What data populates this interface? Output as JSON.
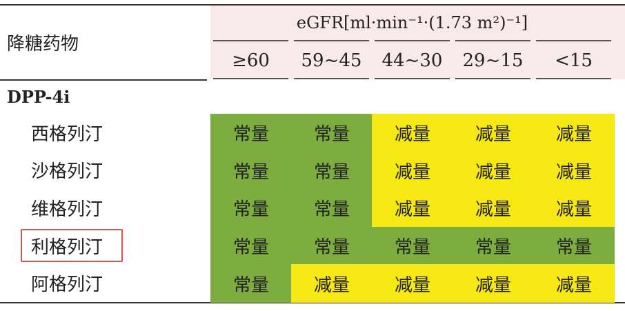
{
  "header": {
    "drug_label": "降糖药物",
    "egfr_label": "eGFR[ml·min⁻¹·(1.73 m²)⁻¹]",
    "columns": [
      "≥60",
      "59~45",
      "44~30",
      "29~15",
      "<15"
    ]
  },
  "table": {
    "group": "DPP-4i",
    "rows": [
      {
        "name": "西格列汀",
        "cells": [
          "常量",
          "常量",
          "减量",
          "减量",
          "减量"
        ]
      },
      {
        "name": "沙格列汀",
        "cells": [
          "常量",
          "常量",
          "减量",
          "减量",
          "减量"
        ]
      },
      {
        "name": "维格列汀",
        "cells": [
          "常量",
          "常量",
          "减量",
          "减量",
          "减量"
        ]
      },
      {
        "name": "利格列汀",
        "cells": [
          "常量",
          "常量",
          "常量",
          "常量",
          "常量"
        ]
      },
      {
        "name": "阿格列汀",
        "cells": [
          "常量",
          "减量",
          "减量",
          "减量",
          "减量"
        ]
      }
    ]
  },
  "cell_colors": {
    "常量": "#7dad3e",
    "减量": "#f6e812"
  },
  "highlighted_row": 3
}
